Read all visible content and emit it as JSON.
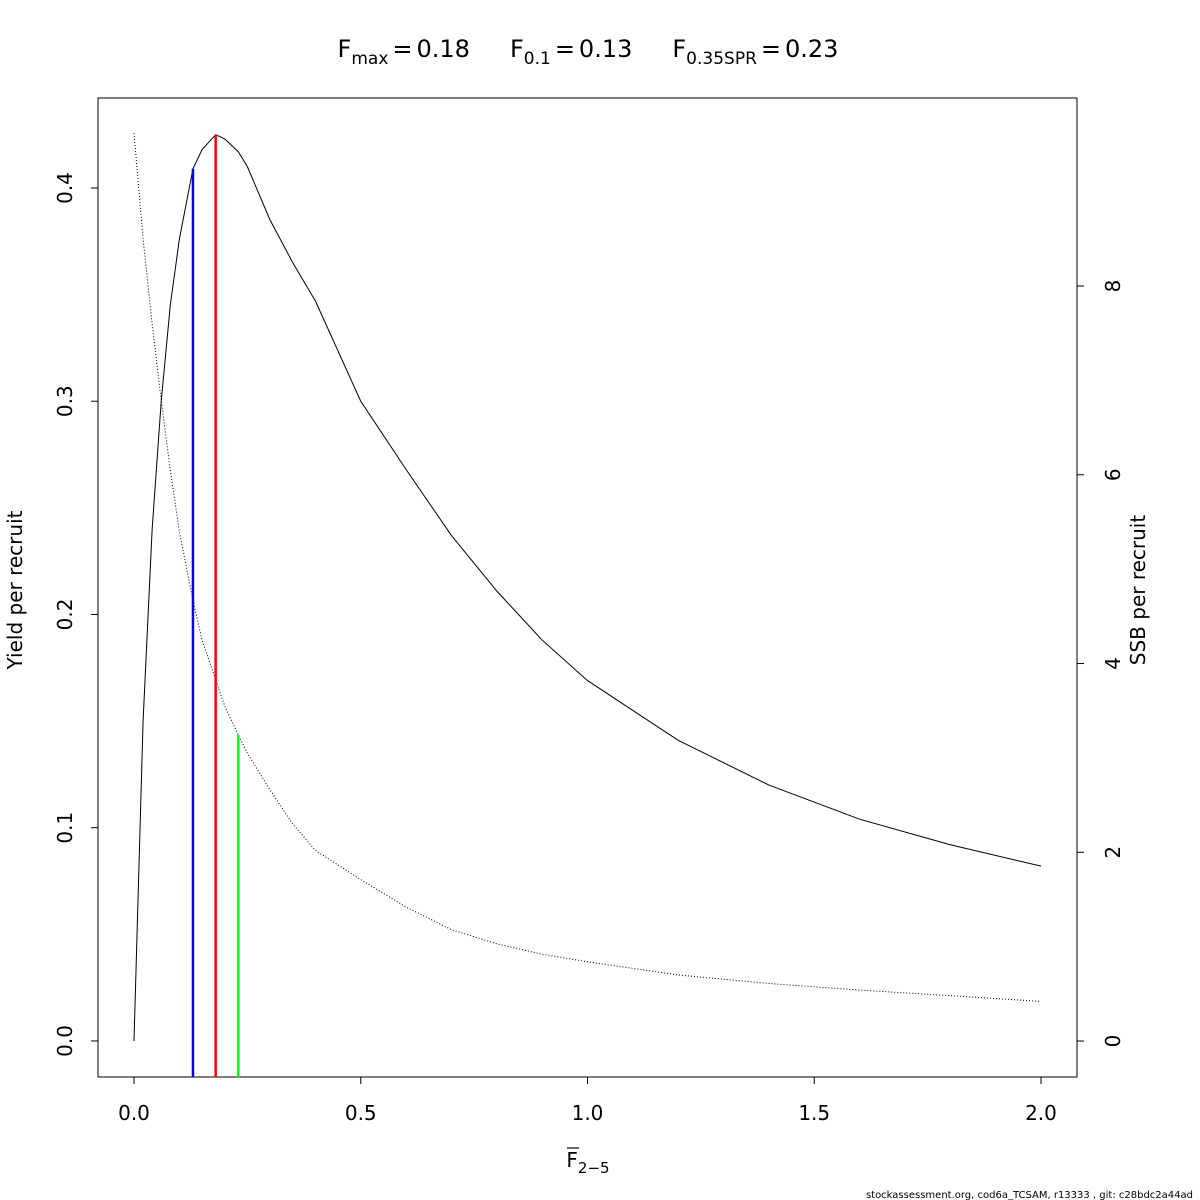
{
  "chart_data": {
    "type": "line",
    "reference_lines": [
      {
        "symbol": "F",
        "subscript": "max",
        "relation": "=",
        "value": 0.18,
        "color": "#ff0000",
        "y_end": 0.425
      },
      {
        "symbol": "F",
        "subscript": "0.1",
        "relation": "=",
        "value": 0.13,
        "color": "#0000ff",
        "y_end": 0.409
      },
      {
        "symbol": "F",
        "subscript": "0.35SPR",
        "relation": "=",
        "value": 0.23,
        "color": "#00ff00",
        "y_end": 0.1435
      }
    ],
    "xlabel": {
      "symbol": "F",
      "subscript": "2−5"
    },
    "ylabel": "Yield per recruit",
    "y2label": "SSB per recruit",
    "footnote": "stockassessment.org, cod6a_TCSAM, r13333 , git: c28bdc2a44ad",
    "x": [
      0,
      0.02,
      0.04,
      0.06,
      0.08,
      0.1,
      0.13,
      0.15,
      0.18,
      0.2,
      0.23,
      0.25,
      0.3,
      0.35,
      0.4,
      0.5,
      0.6,
      0.7,
      0.8,
      0.9,
      1.0,
      1.2,
      1.4,
      1.6,
      1.8,
      2.0
    ],
    "series": [
      {
        "name": "Yield per recruit",
        "color": "#000000",
        "line_style": "solid",
        "values": [
          0,
          0.15,
          0.24,
          0.3,
          0.345,
          0.376,
          0.409,
          0.418,
          0.425,
          0.423,
          0.417,
          0.41,
          0.385,
          0.365,
          0.347,
          0.3,
          0.268,
          0.237,
          0.211,
          0.188,
          0.169,
          0.141,
          0.12,
          0.104,
          0.092,
          0.082
        ]
      },
      {
        "name": "SSB per recruit",
        "color": "#000000",
        "line_style": "dotted",
        "axis": "y2",
        "values": [
          9.62,
          8.5,
          7.6,
          6.79,
          6.05,
          5.4,
          4.67,
          4.25,
          3.83,
          3.55,
          3.24,
          3.05,
          2.66,
          2.3,
          2.02,
          1.71,
          1.42,
          1.18,
          1.03,
          0.92,
          0.84,
          0.7,
          0.61,
          0.54,
          0.48,
          0.42
        ]
      }
    ],
    "xlim": [
      -0.0794,
      2.0794
    ],
    "xticks": [
      {
        "value": 0,
        "label": "0.0"
      },
      {
        "value": 0.5,
        "label": "0.5"
      },
      {
        "value": 1,
        "label": "1.0"
      },
      {
        "value": 1.5,
        "label": "1.5"
      },
      {
        "value": 2,
        "label": "2.0"
      }
    ],
    "ylim": [
      -0.0169,
      0.4422
    ],
    "yticks": [
      {
        "value": 0,
        "label": "0.0"
      },
      {
        "value": 0.1,
        "label": "0.1"
      },
      {
        "value": 0.2,
        "label": "0.2"
      },
      {
        "value": 0.3,
        "label": "0.3"
      },
      {
        "value": 0.4,
        "label": "0.4"
      }
    ],
    "y2lim": [
      -0.381,
      9.992
    ],
    "y2ticks": [
      0,
      2,
      4,
      6,
      8
    ]
  }
}
